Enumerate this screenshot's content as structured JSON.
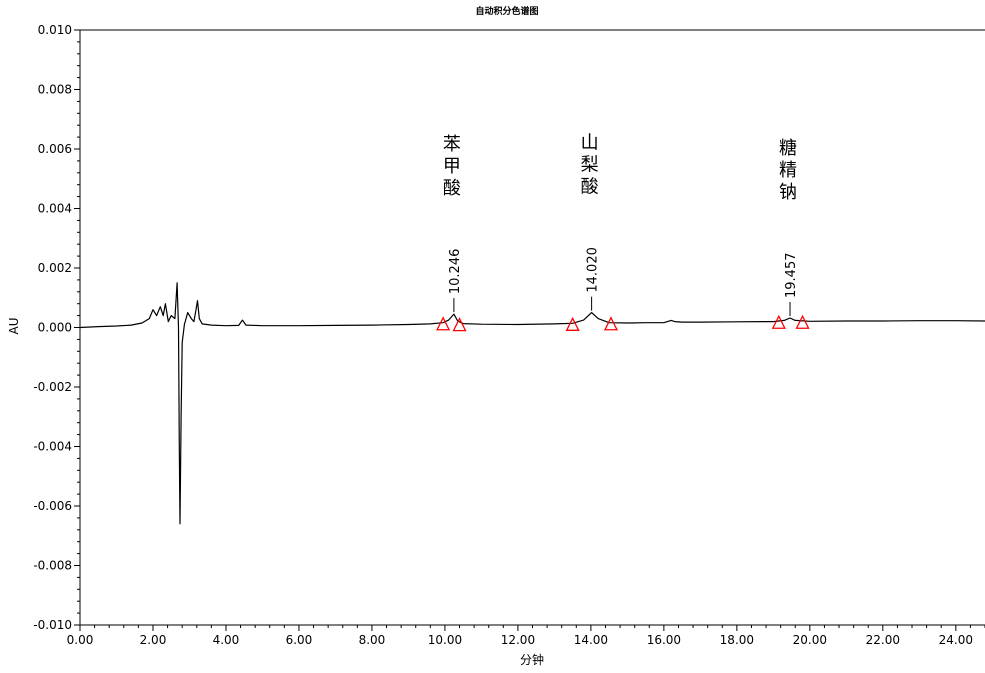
{
  "chart_data": {
    "type": "line",
    "title": "自动积分色谱图",
    "xlabel": "分钟",
    "ylabel": "AU",
    "xlim": [
      0,
      24.8
    ],
    "ylim": [
      -0.01,
      0.01
    ],
    "x_ticks": [
      "0.00",
      "2.00",
      "4.00",
      "6.00",
      "8.00",
      "10.00",
      "12.00",
      "14.00",
      "16.00",
      "18.00",
      "20.00",
      "22.00",
      "24.00"
    ],
    "y_ticks": [
      "0.010",
      "0.008",
      "0.006",
      "0.004",
      "0.002",
      "0.000",
      "-0.002",
      "-0.004",
      "-0.006",
      "-0.008",
      "-0.010"
    ],
    "grid": false,
    "series": [
      {
        "color": "#000000",
        "points": [
          [
            0.0,
            0.0
          ],
          [
            0.5,
            3e-05
          ],
          [
            1.0,
            5e-05
          ],
          [
            1.4,
            8e-05
          ],
          [
            1.7,
            0.00015
          ],
          [
            1.9,
            0.0003
          ],
          [
            2.0,
            0.0006
          ],
          [
            2.1,
            0.0004
          ],
          [
            2.2,
            0.0007
          ],
          [
            2.28,
            0.0004
          ],
          [
            2.34,
            0.0008
          ],
          [
            2.42,
            0.0002
          ],
          [
            2.5,
            0.0004
          ],
          [
            2.6,
            0.0003
          ],
          [
            2.66,
            0.0015
          ],
          [
            2.7,
            0.0
          ],
          [
            2.72,
            -0.004
          ],
          [
            2.74,
            -0.0066
          ],
          [
            2.77,
            -0.003
          ],
          [
            2.8,
            -0.0005
          ],
          [
            2.86,
            0.0001
          ],
          [
            2.95,
            0.0005
          ],
          [
            3.05,
            0.0003
          ],
          [
            3.12,
            0.0002
          ],
          [
            3.18,
            0.0006
          ],
          [
            3.22,
            0.0009
          ],
          [
            3.27,
            0.0003
          ],
          [
            3.35,
            0.00012
          ],
          [
            3.6,
            8e-05
          ],
          [
            4.0,
            6e-05
          ],
          [
            4.35,
            7e-05
          ],
          [
            4.45,
            0.00025
          ],
          [
            4.55,
            8e-05
          ],
          [
            5.0,
            6e-05
          ],
          [
            6.0,
            6e-05
          ],
          [
            7.0,
            7e-05
          ],
          [
            8.0,
            8e-05
          ],
          [
            9.0,
            0.0001
          ],
          [
            9.6,
            0.00012
          ],
          [
            9.95,
            0.00016
          ],
          [
            10.1,
            0.00025
          ],
          [
            10.246,
            0.00045
          ],
          [
            10.35,
            0.00022
          ],
          [
            10.5,
            0.00013
          ],
          [
            11.0,
            0.00011
          ],
          [
            12.0,
            0.0001
          ],
          [
            13.0,
            0.00012
          ],
          [
            13.5,
            0.00014
          ],
          [
            13.8,
            0.00025
          ],
          [
            14.02,
            0.0005
          ],
          [
            14.2,
            0.0003
          ],
          [
            14.5,
            0.00016
          ],
          [
            15.0,
            0.00015
          ],
          [
            15.5,
            0.00016
          ],
          [
            16.0,
            0.00016
          ],
          [
            16.2,
            0.00024
          ],
          [
            16.3,
            0.0002
          ],
          [
            16.5,
            0.00018
          ],
          [
            17.0,
            0.00018
          ],
          [
            18.0,
            0.00019
          ],
          [
            19.0,
            0.0002
          ],
          [
            19.3,
            0.00024
          ],
          [
            19.457,
            0.00032
          ],
          [
            19.6,
            0.00024
          ],
          [
            20.0,
            0.00021
          ],
          [
            21.0,
            0.00022
          ],
          [
            22.0,
            0.00022
          ],
          [
            23.0,
            0.00023
          ],
          [
            24.0,
            0.00023
          ],
          [
            24.8,
            0.00022
          ]
        ]
      }
    ],
    "peaks": [
      {
        "name": "苯甲酸",
        "time_label": "10.246",
        "time": 10.246,
        "apex": 0.00045,
        "markers": [
          [
            9.95,
            0.00016
          ],
          [
            10.4,
            0.00013
          ]
        ]
      },
      {
        "name": "山梨酸",
        "time_label": "14.020",
        "time": 14.02,
        "apex": 0.0005,
        "markers": [
          [
            13.5,
            0.00014
          ],
          [
            14.55,
            0.00016
          ]
        ]
      },
      {
        "name": "糖精钠",
        "time_label": "19.457",
        "time": 19.457,
        "apex": 0.00032,
        "markers": [
          [
            19.15,
            0.00021
          ],
          [
            19.8,
            0.00021
          ]
        ]
      }
    ],
    "marker_color": "#ff0000",
    "line_color": "#000000"
  }
}
